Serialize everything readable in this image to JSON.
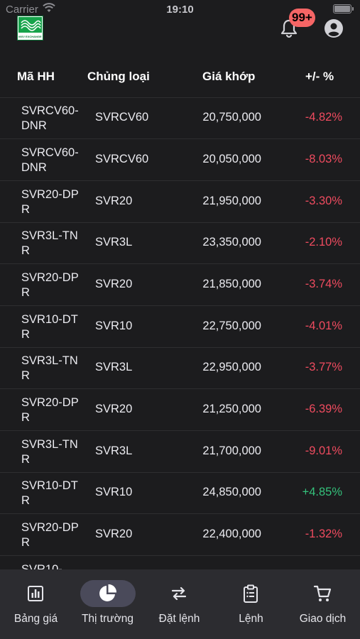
{
  "status": {
    "carrier": "Carrier",
    "time": "19:10"
  },
  "header": {
    "notification_badge": "99+",
    "logo_text": "MXV EXCHANGE"
  },
  "table": {
    "headers": {
      "code": "Mã HH",
      "type": "Chủng loại",
      "price": "Giá khớp",
      "change": "+/- %"
    },
    "rows": [
      {
        "code": "SVRCV60-DNR",
        "type": "SVRCV60",
        "price": "20,750,000",
        "change": "-4.82%",
        "direction": "down"
      },
      {
        "code": "SVRCV60-DNR",
        "type": "SVRCV60",
        "price": "20,050,000",
        "change": "-8.03%",
        "direction": "down"
      },
      {
        "code": "SVR20-DPR",
        "type": "SVR20",
        "price": "21,950,000",
        "change": "-3.30%",
        "direction": "down"
      },
      {
        "code": "SVR3L-TNR",
        "type": "SVR3L",
        "price": "23,350,000",
        "change": "-2.10%",
        "direction": "down"
      },
      {
        "code": "SVR20-DPR",
        "type": "SVR20",
        "price": "21,850,000",
        "change": "-3.74%",
        "direction": "down"
      },
      {
        "code": "SVR10-DTR",
        "type": "SVR10",
        "price": "22,750,000",
        "change": "-4.01%",
        "direction": "down"
      },
      {
        "code": "SVR3L-TNR",
        "type": "SVR3L",
        "price": "22,950,000",
        "change": "-3.77%",
        "direction": "down"
      },
      {
        "code": "SVR20-DPR",
        "type": "SVR20",
        "price": "21,250,000",
        "change": "-6.39%",
        "direction": "down"
      },
      {
        "code": "SVR3L-TNR",
        "type": "SVR3L",
        "price": "21,700,000",
        "change": "-9.01%",
        "direction": "down"
      },
      {
        "code": "SVR10-DTR",
        "type": "SVR10",
        "price": "24,850,000",
        "change": "+4.85%",
        "direction": "up"
      },
      {
        "code": "SVR20-DPR",
        "type": "SVR20",
        "price": "22,400,000",
        "change": "-1.32%",
        "direction": "down"
      },
      {
        "code": "SVR10-",
        "type": "",
        "price": "",
        "change": "",
        "direction": "down"
      }
    ]
  },
  "tabbar": {
    "tabs": [
      {
        "label": "Bảng giá",
        "icon": "bar-chart-icon",
        "active": false
      },
      {
        "label": "Thị trường",
        "icon": "pie-chart-icon",
        "active": true
      },
      {
        "label": "Đặt lệnh",
        "icon": "swap-arrows-icon",
        "active": false
      },
      {
        "label": "Lệnh",
        "icon": "clipboard-list-icon",
        "active": false
      },
      {
        "label": "Giao dịch",
        "icon": "shopping-cart-icon",
        "active": false
      }
    ]
  },
  "colors": {
    "negative": "#ef4b5f",
    "positive": "#34c17b",
    "badge": "#f56565",
    "background": "#1c1c1e",
    "tabbar": "#2c2c30"
  }
}
